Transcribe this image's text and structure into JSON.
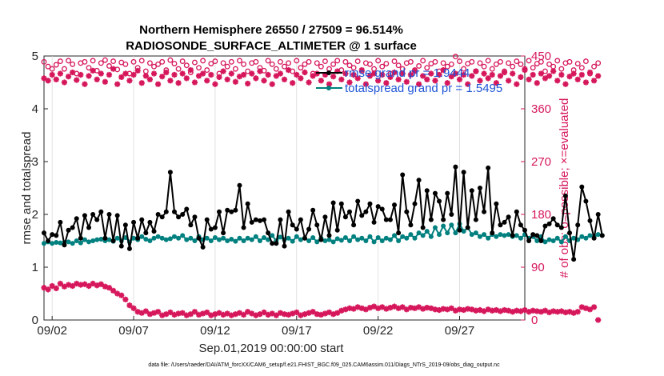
{
  "chart_data": {
    "type": "line",
    "title_line1": "Northern Hemisphere 26550 / 27509 = 96.514%",
    "title_line2": "RADIOSONDE_SURFACE_ALTIMETER @ 1 surface",
    "xlabel": "Sep.01,2019 00:00:00 start",
    "ylabel_left": "rmse and totalspread",
    "ylabel_right": "# of obs: o=possible; ×=evaluated",
    "footnote": "data file: /Users/raeder/DAI/ATM_forcXX/CAM6_setup/f.e21.FHIST_BGC.f09_025.CAM6assim.011/Diags_NTrS_2019-09/obs_diag_output.nc",
    "xlim": [
      1.5,
      31.0
    ],
    "ylim_left": [
      0,
      5
    ],
    "ylim_right": [
      0,
      450
    ],
    "xtick_values": [
      2,
      7,
      12,
      17,
      22,
      27
    ],
    "xtick_labels": [
      "09/02",
      "09/07",
      "09/12",
      "09/17",
      "09/22",
      "09/27"
    ],
    "ytick_left": [
      "0",
      "1",
      "2",
      "3",
      "4",
      "5"
    ],
    "ytick_right": [
      "0",
      "90",
      "180",
      "270",
      "360",
      "450"
    ],
    "x_start": 1.5,
    "x_step": 0.25,
    "legend": [
      {
        "name": "rmse",
        "label": "rmse grand pr = 1.9444",
        "color": "#000000"
      },
      {
        "name": "totalspread",
        "label": "totalspread grand pr = 1.5495",
        "color": "#00807f"
      }
    ],
    "series": [
      {
        "name": "rmse",
        "color": "#000000",
        "values": [
          1.65,
          1.5,
          1.62,
          1.6,
          1.85,
          1.42,
          1.7,
          1.75,
          1.92,
          1.55,
          1.98,
          1.75,
          2.0,
          1.9,
          2.05,
          1.55,
          2.0,
          1.5,
          1.98,
          1.4,
          1.8,
          1.35,
          1.85,
          1.55,
          1.9,
          1.65,
          1.85,
          1.68,
          2.0,
          1.95,
          2.05,
          2.8,
          2.05,
          1.95,
          2.0,
          2.1,
          1.8,
          1.95,
          1.55,
          1.38,
          1.9,
          1.72,
          1.75,
          2.05,
          1.65,
          2.08,
          2.05,
          2.08,
          2.55,
          1.75,
          2.2,
          1.85,
          1.9,
          1.88,
          1.9,
          1.65,
          1.45,
          1.45,
          1.9,
          1.4,
          2.05,
          1.8,
          1.72,
          1.9,
          1.55,
          1.72,
          2.08,
          1.8,
          1.52,
          1.95,
          1.6,
          2.22,
          1.7,
          2.2,
          1.95,
          2.05,
          1.8,
          2.25,
          1.98,
          2.05,
          2.2,
          1.85,
          2.15,
          2.1,
          1.9,
          1.9,
          2.18,
          1.65,
          2.75,
          2.05,
          1.8,
          2.2,
          2.65,
          1.75,
          2.45,
          1.9,
          2.4,
          2.25,
          1.9,
          2.4,
          2.0,
          2.9,
          1.7,
          2.8,
          1.75,
          2.45,
          1.9,
          2.5,
          2.05,
          2.88,
          1.65,
          2.2,
          1.8,
          1.85,
          1.95,
          1.6,
          2.05,
          1.8,
          1.7,
          1.5,
          1.62,
          1.6,
          1.5,
          1.78,
          1.82,
          1.92,
          1.8,
          1.75,
          2.35,
          1.65,
          1.15,
          1.8,
          2.52,
          2.25,
          1.88,
          1.55,
          2.0,
          1.6
        ]
      },
      {
        "name": "totalspread",
        "color": "#00807f",
        "values": [
          1.45,
          1.48,
          1.45,
          1.47,
          1.46,
          1.47,
          1.48,
          1.45,
          1.5,
          1.46,
          1.52,
          1.48,
          1.5,
          1.52,
          1.53,
          1.5,
          1.52,
          1.49,
          1.55,
          1.5,
          1.56,
          1.48,
          1.55,
          1.52,
          1.58,
          1.53,
          1.5,
          1.55,
          1.58,
          1.55,
          1.52,
          1.54,
          1.58,
          1.55,
          1.6,
          1.52,
          1.55,
          1.5,
          1.58,
          1.52,
          1.55,
          1.5,
          1.56,
          1.52,
          1.55,
          1.5,
          1.53,
          1.49,
          1.55,
          1.5,
          1.55,
          1.52,
          1.58,
          1.5,
          1.56,
          1.52,
          1.6,
          1.5,
          1.57,
          1.52,
          1.55,
          1.49,
          1.58,
          1.52,
          1.55,
          1.5,
          1.56,
          1.48,
          1.55,
          1.5,
          1.52,
          1.48,
          1.54,
          1.51,
          1.56,
          1.5,
          1.58,
          1.52,
          1.55,
          1.5,
          1.58,
          1.48,
          1.56,
          1.5,
          1.55,
          1.52,
          1.6,
          1.5,
          1.58,
          1.55,
          1.62,
          1.55,
          1.65,
          1.6,
          1.68,
          1.58,
          1.75,
          1.62,
          1.78,
          1.65,
          1.8,
          1.65,
          1.82,
          1.68,
          1.75,
          1.62,
          1.65,
          1.58,
          1.62,
          1.55,
          1.62,
          1.58,
          1.62,
          1.6,
          1.62,
          1.58,
          1.6,
          1.55,
          1.62,
          1.55,
          1.58,
          1.5,
          1.58,
          1.48,
          1.52,
          1.5,
          1.55,
          1.48,
          1.58,
          1.5,
          1.55,
          1.52,
          1.58,
          1.55,
          1.6,
          1.58,
          1.62,
          1.6
        ]
      },
      {
        "name": "possible",
        "color": "#d6175b",
        "marker": "circle",
        "axis": "right",
        "values": [
          440,
          432,
          428,
          435,
          441,
          428,
          442,
          436,
          420,
          438,
          440,
          430,
          442,
          425,
          438,
          443,
          433,
          441,
          427,
          439,
          436,
          420,
          440,
          430,
          442,
          424,
          438,
          432,
          436,
          440,
          426,
          443,
          437,
          428,
          441,
          434,
          422,
          439,
          430,
          442,
          426,
          437,
          441,
          420,
          438,
          432,
          440,
          428,
          442,
          436,
          424,
          438,
          440,
          430,
          425,
          442,
          436,
          428,
          440,
          432,
          438,
          424,
          442,
          430,
          436,
          440,
          420,
          438,
          432,
          441,
          428,
          436,
          442,
          426,
          440,
          434,
          430,
          441,
          424,
          438,
          436,
          428,
          442,
          432,
          437,
          420,
          441,
          434,
          428,
          438,
          440,
          426,
          433,
          442,
          430,
          437,
          440,
          424,
          438,
          432,
          436,
          449,
          441,
          428,
          437,
          440,
          424,
          438,
          432,
          442,
          428,
          436,
          440,
          424,
          438,
          432,
          441,
          436,
          428,
          442,
          430,
          437,
          440,
          424,
          436,
          432,
          442,
          428,
          438,
          440,
          426,
          437,
          430,
          441,
          420,
          432,
          438
        ]
      },
      {
        "name": "evaluated",
        "color": "#d6175b",
        "marker": "asterisk",
        "axis": "right",
        "values": [
          412,
          408,
          418,
          410,
          420,
          405,
          415,
          422,
          409,
          418,
          402,
          416,
          425,
          410,
          420,
          406,
          418,
          428,
          402,
          414,
          420,
          408,
          418,
          425,
          404,
          416,
          410,
          420,
          402,
          415,
          422,
          408,
          418,
          404,
          420,
          412,
          426,
          405,
          416,
          420,
          408,
          418,
          402,
          414,
          424,
          410,
          420,
          406,
          415,
          418,
          403,
          420,
          412,
          424,
          408,
          418,
          402,
          416,
          420,
          410,
          426,
          404,
          418,
          412,
          422,
          405,
          416,
          420,
          408,
          418,
          402,
          415,
          424,
          410,
          420,
          405,
          418,
          412,
          426,
          402,
          416,
          420,
          408,
          418,
          404,
          414,
          422,
          410,
          420,
          406,
          418,
          424,
          402,
          416,
          410,
          420,
          408,
          418,
          426,
          404,
          415,
          420,
          410,
          418,
          402,
          416,
          424,
          408,
          420,
          412,
          418,
          404,
          416,
          422,
          408,
          420,
          402,
          414,
          426,
          410,
          418,
          404,
          420,
          412,
          416,
          424,
          408,
          418,
          402,
          415,
          420,
          410,
          418,
          405,
          422,
          408,
          416
        ]
      },
      {
        "name": "evaluated_low",
        "color": "#d6175b",
        "marker": "asterisk",
        "axis": "right",
        "values": [
          55,
          52,
          58,
          54,
          62,
          57,
          60,
          58,
          62,
          60,
          61,
          58,
          62,
          59,
          61,
          57,
          55,
          50,
          45,
          42,
          35,
          25,
          20,
          14,
          12,
          15,
          10,
          12,
          14,
          8,
          10,
          13,
          9,
          11,
          12,
          8,
          10,
          14,
          9,
          11,
          13,
          8,
          10,
          12,
          9,
          11,
          8,
          10,
          12,
          9,
          14,
          11,
          8,
          10,
          13,
          9,
          11,
          8,
          12,
          10,
          9,
          11,
          13,
          8,
          10,
          12,
          14,
          10,
          9,
          11,
          13,
          10,
          12,
          16,
          18,
          20,
          19,
          22,
          20,
          18,
          21,
          23,
          20,
          22,
          19,
          21,
          23,
          20,
          22,
          18,
          21,
          20,
          22,
          19,
          21,
          20,
          18,
          17,
          19,
          18,
          20,
          16,
          18,
          17,
          19,
          18,
          16,
          17,
          15,
          18,
          16,
          17,
          15,
          17,
          16,
          14,
          16,
          15,
          17,
          14,
          16,
          15,
          14,
          16,
          13,
          15,
          14,
          15,
          13,
          14,
          12,
          14,
          22,
          20,
          18,
          22,
          0
        ]
      }
    ]
  }
}
